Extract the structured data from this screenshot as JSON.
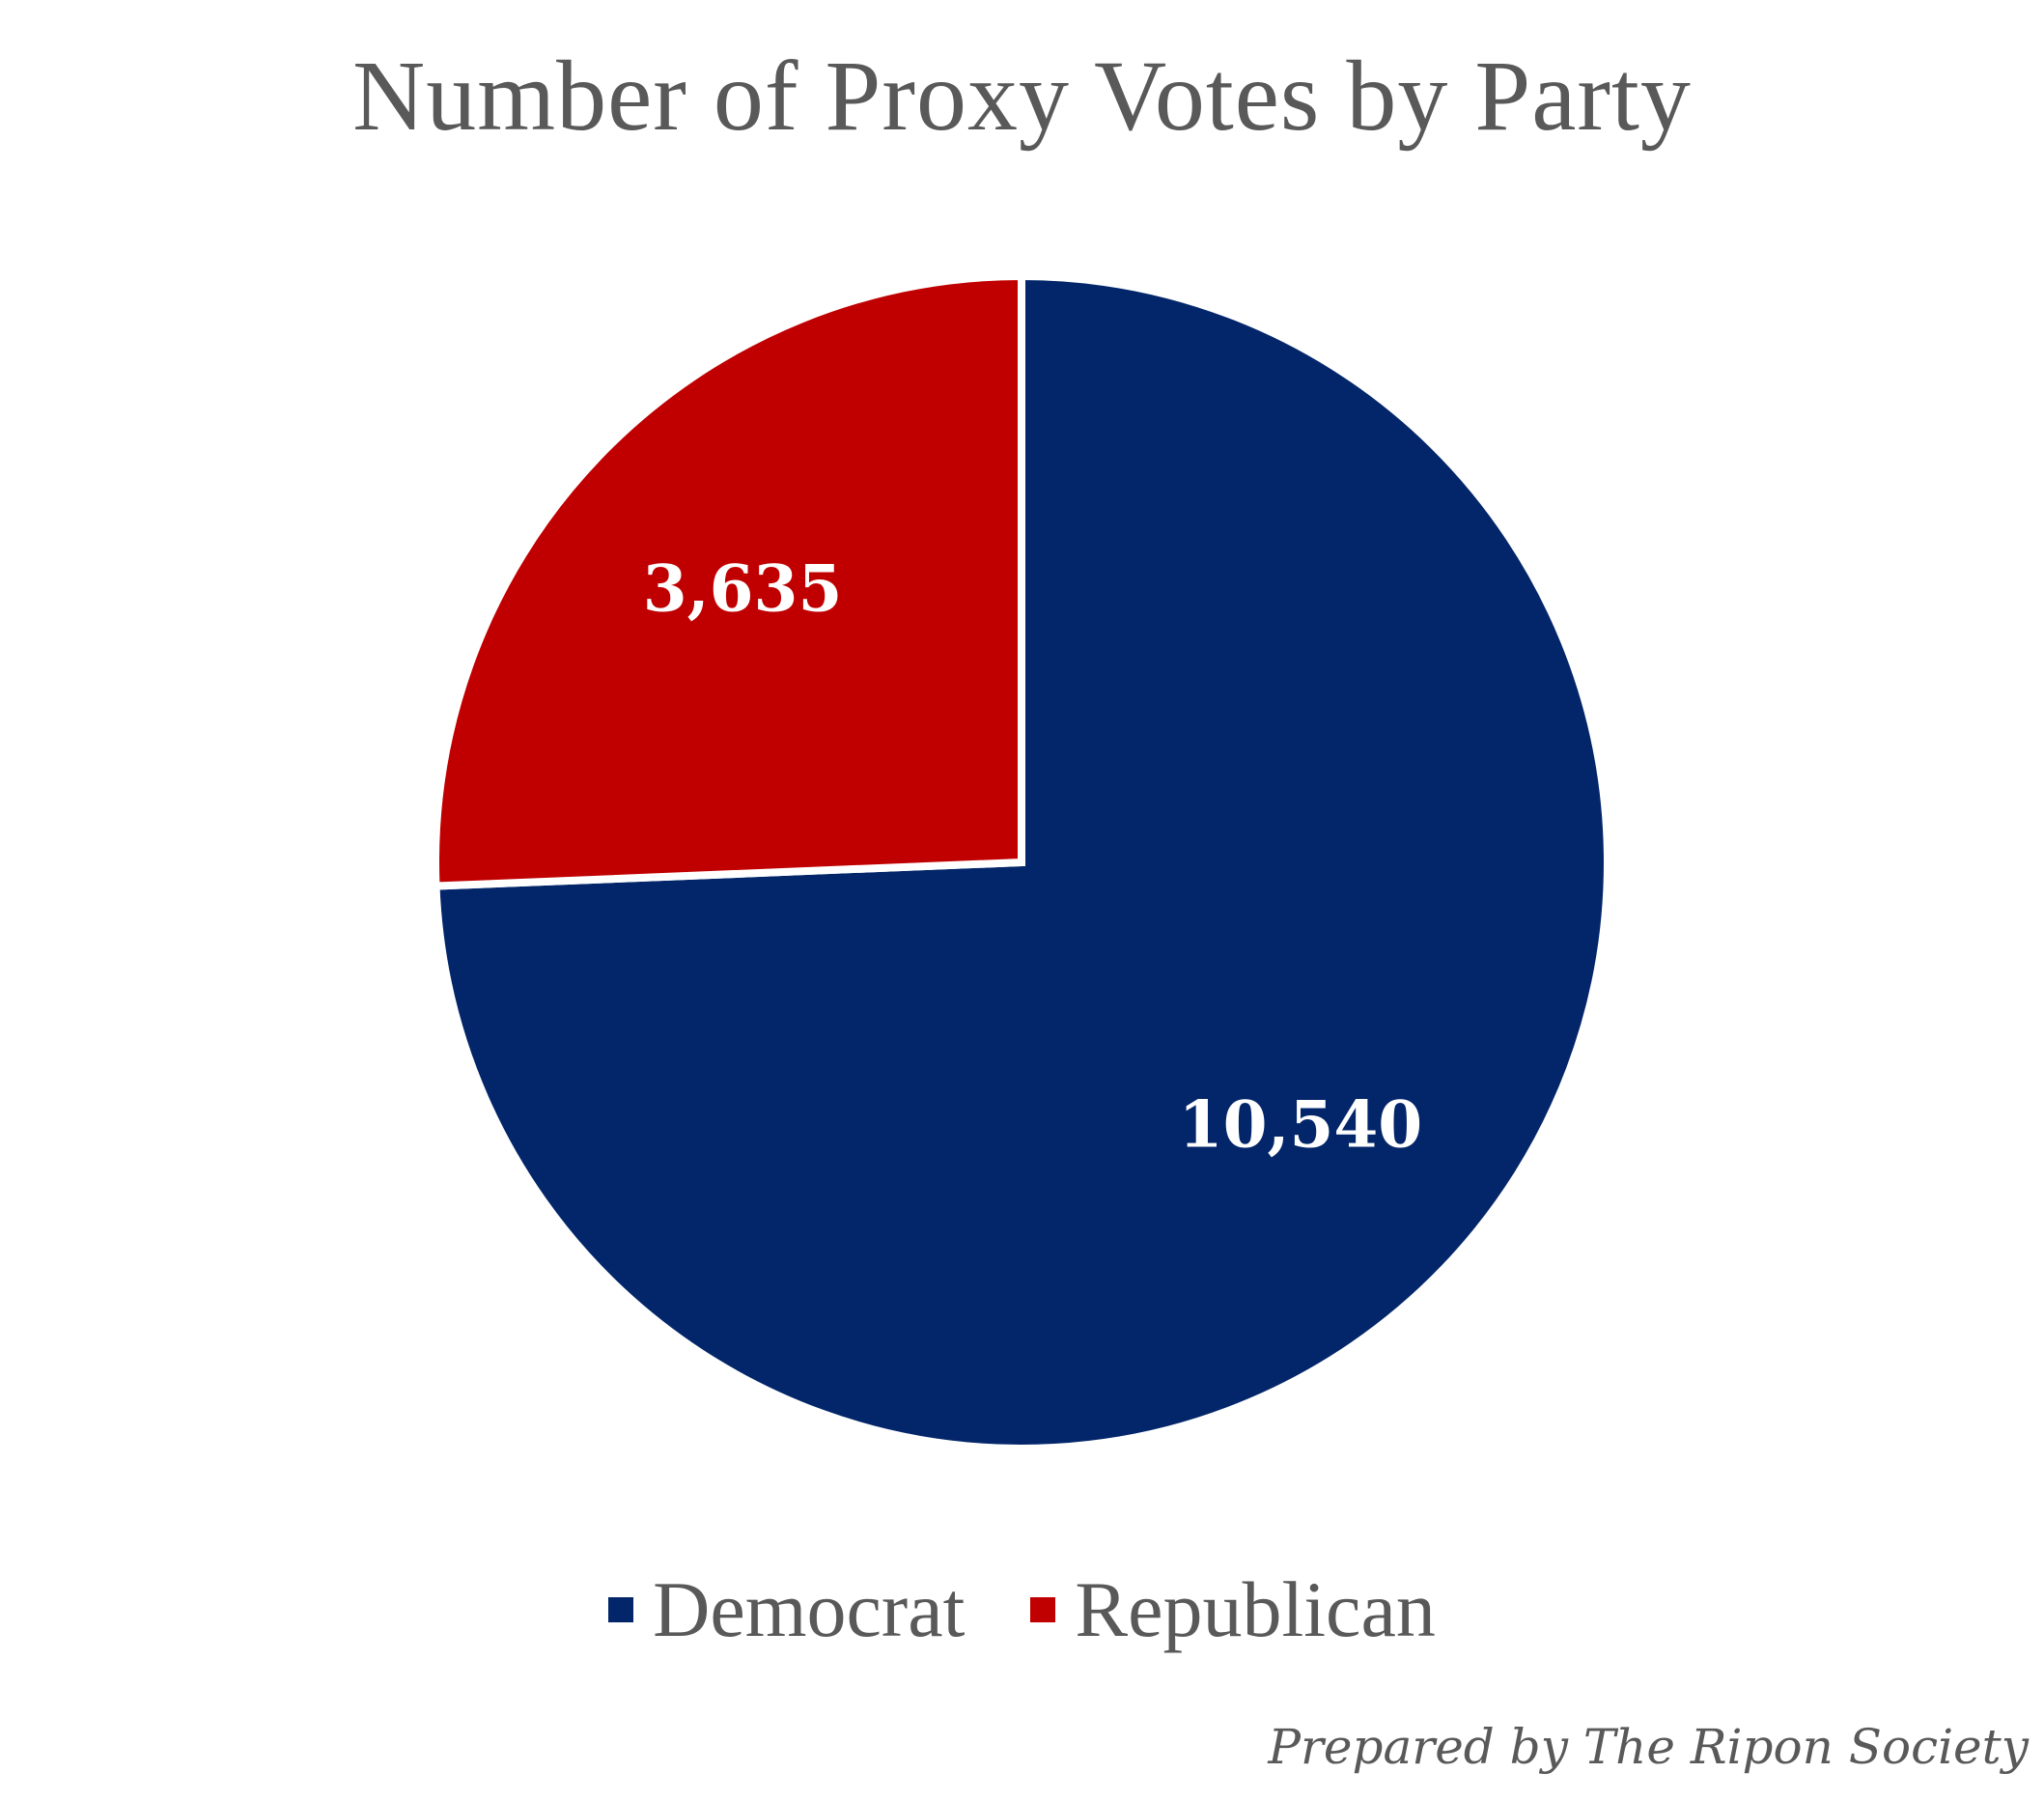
{
  "chart_data": {
    "type": "pie",
    "title": "Number of Proxy Votes by Party",
    "categories": [
      "Democrat",
      "Republican"
    ],
    "values": [
      10540,
      3635
    ],
    "value_labels": [
      "10,540",
      "3,635"
    ],
    "colors": [
      "#03266A",
      "#C00000"
    ],
    "legend_position": "bottom",
    "start_angle": "12 o'clock, clockwise"
  },
  "legend": {
    "items": [
      {
        "label": "Democrat",
        "color": "#03266A"
      },
      {
        "label": "Republican",
        "color": "#C00000"
      }
    ]
  },
  "credit": "Prepared by The Ripon Society"
}
